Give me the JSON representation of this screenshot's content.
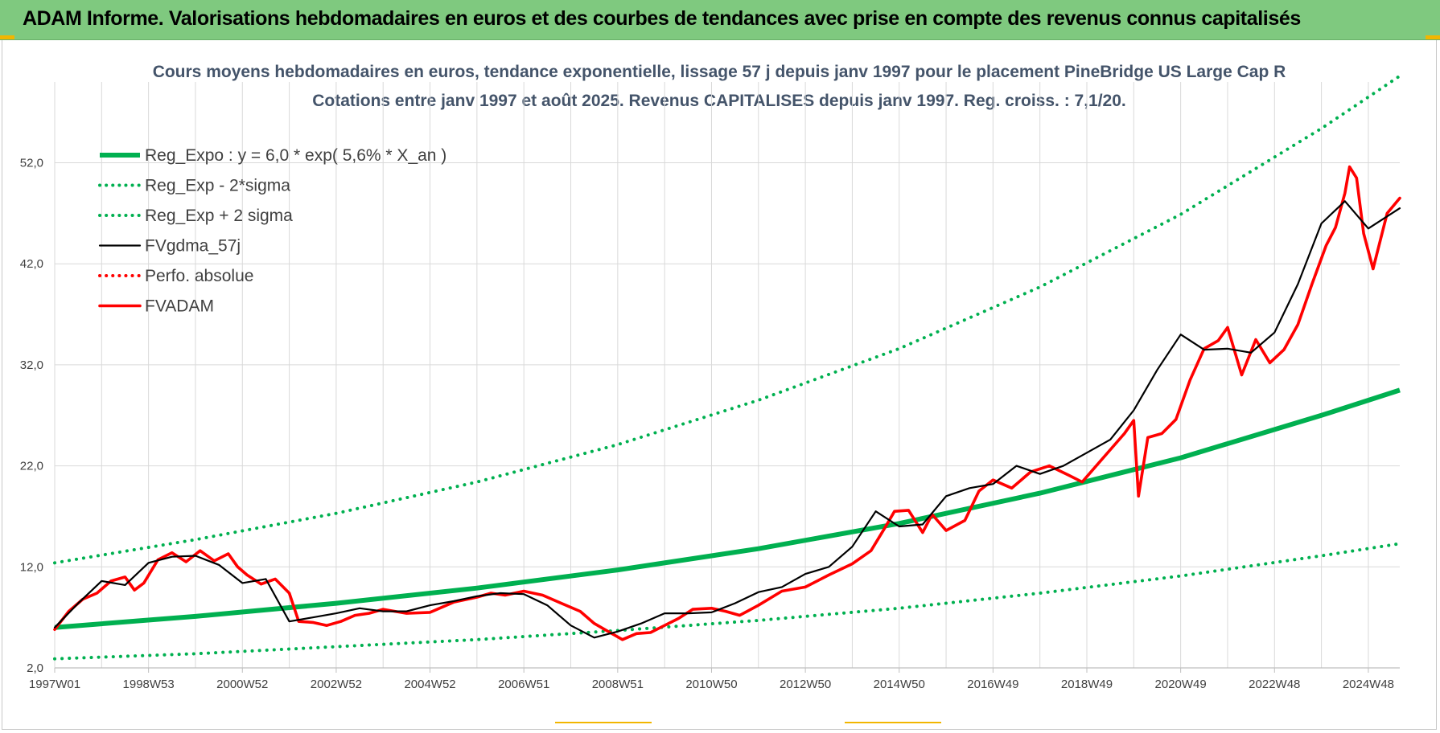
{
  "banner": {
    "title": "ADAM Informe. Valorisations hebdomadaires en euros et des courbes de tendances avec prise en compte des revenus connus capitalisés",
    "bg_color": "#7fc97f"
  },
  "chart_data": {
    "type": "line",
    "title": "Cours moyens hebdomadaires en euros, tendance exponentielle, lissage 57 j depuis janv 1997  pour le placement PineBridge US Large Cap R",
    "subtitle": "Cotations entre janv 1997 et août 2025.  Revenus CAPITALISES depuis janv 1997. Reg. croiss. : 7,1/20.",
    "xlabel": "",
    "ylabel": "",
    "x_unit": "year",
    "xlim": [
      1997.0,
      2025.67
    ],
    "ylim": [
      2.0,
      60.0
    ],
    "y_ticks": [
      "2,0",
      "12,0",
      "22,0",
      "32,0",
      "42,0",
      "52,0"
    ],
    "y_tick_values": [
      2,
      12,
      22,
      32,
      42,
      52
    ],
    "x_tick_labels": [
      "1997W01",
      "1998W53",
      "2000W52",
      "2002W52",
      "2004W52",
      "2006W51",
      "2008W51",
      "2010W50",
      "2012W50",
      "2014W50",
      "2016W49",
      "2018W49",
      "2020W49",
      "2022W48",
      "2024W48"
    ],
    "x_tick_years": [
      1997.0,
      1999.0,
      2001.0,
      2003.0,
      2005.0,
      2007.0,
      2009.0,
      2011.0,
      2013.0,
      2015.0,
      2017.0,
      2019.0,
      2021.0,
      2023.0,
      2025.0
    ],
    "grid": true,
    "legend_position": "top-left",
    "series": [
      {
        "name": "Reg_Expo : y = 6,0 * exp( 5,6% *  X_an )",
        "style": "solid-thick",
        "color": "#00b050",
        "x": [
          1997.0,
          2000.0,
          2003.0,
          2006.0,
          2009.0,
          2012.0,
          2015.0,
          2018.0,
          2021.0,
          2024.0,
          2025.67
        ],
        "values": [
          6.0,
          7.1,
          8.4,
          9.9,
          11.7,
          13.8,
          16.3,
          19.3,
          22.8,
          27.0,
          29.5
        ]
      },
      {
        "name": "Reg_Exp - 2*sigma",
        "style": "dotted",
        "color": "#00b050",
        "x": [
          1997.0,
          2000.0,
          2003.0,
          2006.0,
          2009.0,
          2012.0,
          2015.0,
          2018.0,
          2021.0,
          2024.0,
          2025.67
        ],
        "values": [
          2.9,
          3.4,
          4.1,
          4.8,
          5.7,
          6.7,
          7.9,
          9.4,
          11.1,
          13.1,
          14.3
        ]
      },
      {
        "name": "Reg_Exp + 2 sigma",
        "style": "dotted",
        "color": "#00b050",
        "x": [
          1997.0,
          2000.0,
          2003.0,
          2006.0,
          2009.0,
          2012.0,
          2015.0,
          2018.0,
          2021.0,
          2024.0,
          2025.67
        ],
        "values": [
          12.4,
          14.7,
          17.3,
          20.4,
          24.1,
          28.5,
          33.6,
          39.7,
          46.9,
          55.4,
          60.6
        ]
      },
      {
        "name": "FVgdma_57j",
        "style": "solid",
        "color": "#000000",
        "x": [
          1997.0,
          1997.5,
          1998.0,
          1998.5,
          1999.0,
          1999.5,
          2000.0,
          2000.5,
          2001.0,
          2001.5,
          2002.0,
          2002.5,
          2003.0,
          2003.5,
          2004.0,
          2004.5,
          2005.0,
          2005.5,
          2006.0,
          2006.5,
          2007.0,
          2007.5,
          2008.0,
          2008.5,
          2009.0,
          2009.5,
          2010.0,
          2010.5,
          2011.0,
          2011.5,
          2012.0,
          2012.5,
          2013.0,
          2013.5,
          2014.0,
          2014.5,
          2015.0,
          2015.5,
          2016.0,
          2016.5,
          2017.0,
          2017.5,
          2018.0,
          2018.5,
          2019.0,
          2019.5,
          2020.0,
          2020.5,
          2021.0,
          2021.5,
          2022.0,
          2022.5,
          2023.0,
          2023.5,
          2024.0,
          2024.5,
          2025.0,
          2025.67
        ],
        "values": [
          6.0,
          8.4,
          10.6,
          10.2,
          12.4,
          13.0,
          13.1,
          12.2,
          10.4,
          10.8,
          6.6,
          7.0,
          7.4,
          7.9,
          7.6,
          7.6,
          8.2,
          8.6,
          9.1,
          9.4,
          9.3,
          8.2,
          6.2,
          5.0,
          5.6,
          6.4,
          7.4,
          7.4,
          7.5,
          8.4,
          9.5,
          10.0,
          11.3,
          12.0,
          14.0,
          17.5,
          16.0,
          16.2,
          19.0,
          19.8,
          20.2,
          22.0,
          21.2,
          22.0,
          23.3,
          24.6,
          27.5,
          31.5,
          35.0,
          33.5,
          33.6,
          33.2,
          35.2,
          40.0,
          46.0,
          48.2,
          45.5,
          47.5
        ]
      },
      {
        "name": "Perfo. absolue",
        "style": "dotted",
        "color": "#ff0000",
        "x": [],
        "values": []
      },
      {
        "name": "FVADAM",
        "style": "solid-thick",
        "color": "#ff0000",
        "x": [
          1997.0,
          1997.3,
          1997.6,
          1997.9,
          1998.2,
          1998.5,
          1998.7,
          1998.9,
          1999.2,
          1999.5,
          1999.8,
          2000.1,
          2000.4,
          2000.7,
          2000.9,
          2001.1,
          2001.4,
          2001.7,
          2002.0,
          2002.2,
          2002.5,
          2002.8,
          2003.1,
          2003.4,
          2003.7,
          2004.0,
          2004.5,
          2005.0,
          2005.5,
          2006.0,
          2006.3,
          2006.6,
          2007.0,
          2007.4,
          2007.8,
          2008.2,
          2008.5,
          2008.8,
          2009.1,
          2009.4,
          2009.7,
          2010.0,
          2010.3,
          2010.6,
          2011.0,
          2011.3,
          2011.6,
          2012.0,
          2012.5,
          2013.0,
          2013.5,
          2014.0,
          2014.4,
          2014.7,
          2014.9,
          2015.2,
          2015.5,
          2015.7,
          2016.0,
          2016.4,
          2016.7,
          2017.0,
          2017.4,
          2017.8,
          2018.2,
          2018.6,
          2018.9,
          2019.2,
          2019.5,
          2019.8,
          2020.0,
          2020.1,
          2020.3,
          2020.6,
          2020.9,
          2021.2,
          2021.5,
          2021.8,
          2022.0,
          2022.3,
          2022.6,
          2022.9,
          2023.2,
          2023.5,
          2023.8,
          2024.1,
          2024.3,
          2024.5,
          2024.6,
          2024.75,
          2024.9,
          2025.1,
          2025.4,
          2025.67
        ],
        "values": [
          5.8,
          7.6,
          8.8,
          9.4,
          10.6,
          11.0,
          9.7,
          10.4,
          12.7,
          13.4,
          12.5,
          13.6,
          12.6,
          13.3,
          12.0,
          11.2,
          10.3,
          10.8,
          9.4,
          6.6,
          6.5,
          6.2,
          6.6,
          7.2,
          7.4,
          7.8,
          7.4,
          7.5,
          8.5,
          9.0,
          9.4,
          9.2,
          9.6,
          9.2,
          8.4,
          7.6,
          6.4,
          5.6,
          4.8,
          5.4,
          5.5,
          6.2,
          6.9,
          7.8,
          7.9,
          7.6,
          7.2,
          8.2,
          9.6,
          10.0,
          11.2,
          12.3,
          13.6,
          15.9,
          17.5,
          17.6,
          15.4,
          17.2,
          15.6,
          16.6,
          19.5,
          20.6,
          19.8,
          21.4,
          22.0,
          21.1,
          20.4,
          22.0,
          23.6,
          25.2,
          26.5,
          19.0,
          24.8,
          25.2,
          26.6,
          30.5,
          33.6,
          34.4,
          35.7,
          31.0,
          34.5,
          32.2,
          33.5,
          36.0,
          40.0,
          43.8,
          45.6,
          49.0,
          51.6,
          50.5,
          45.0,
          41.5,
          47.0,
          48.5
        ]
      }
    ]
  }
}
